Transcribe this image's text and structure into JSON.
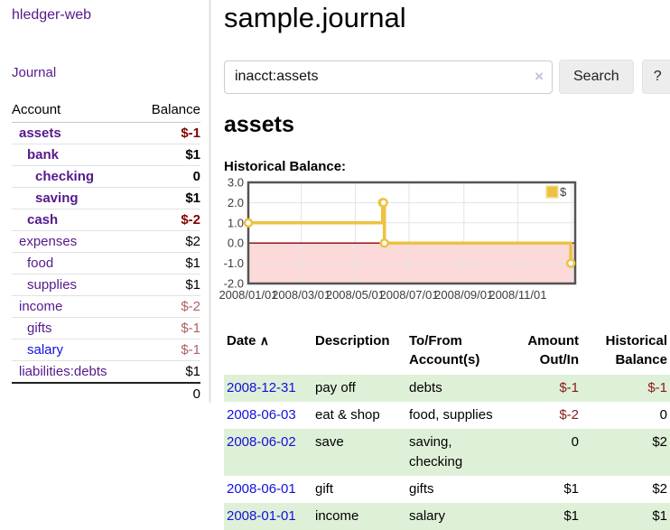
{
  "sidebar": {
    "app_title": "hledger-web",
    "journal_link": "Journal",
    "accounts_header": {
      "account": "Account",
      "balance": "Balance"
    },
    "accounts": [
      {
        "name": "assets",
        "balance": "$-1"
      },
      {
        "name": "bank",
        "balance": "$1"
      },
      {
        "name": "checking",
        "balance": "0"
      },
      {
        "name": "saving",
        "balance": "$1"
      },
      {
        "name": "cash",
        "balance": "$-2"
      },
      {
        "name": "expenses",
        "balance": "$2"
      },
      {
        "name": "food",
        "balance": "$1"
      },
      {
        "name": "supplies",
        "balance": "$1"
      },
      {
        "name": "income",
        "balance": "$-2"
      },
      {
        "name": "gifts",
        "balance": "$-1"
      },
      {
        "name": "salary",
        "balance": "$-1"
      },
      {
        "name": "liabilities:debts",
        "balance": "$1"
      }
    ],
    "total": "0"
  },
  "main": {
    "title": "sample.journal",
    "search": {
      "value": "inacct:assets",
      "clear_icon": "×",
      "button": "Search",
      "help_button": "?"
    },
    "account_heading": "assets",
    "chart_label": "Historical Balance:",
    "table": {
      "headers": [
        "Date",
        "Description",
        "To/From Account(s)",
        "Amount Out/In",
        "Historical Balance"
      ],
      "sort_icon": "∧",
      "rows": [
        {
          "date": "2008-12-31",
          "description": "pay off",
          "accounts": "debts",
          "amount": "$-1",
          "balance": "$-1"
        },
        {
          "date": "2008-06-03",
          "description": "eat & shop",
          "accounts": "food, supplies",
          "amount": "$-2",
          "balance": "0"
        },
        {
          "date": "2008-06-02",
          "description": "save",
          "accounts": "saving, checking",
          "amount": "0",
          "balance": "$2"
        },
        {
          "date": "2008-06-01",
          "description": "gift",
          "accounts": "gifts",
          "amount": "$1",
          "balance": "$2"
        },
        {
          "date": "2008-01-01",
          "description": "income",
          "accounts": "salary",
          "amount": "$1",
          "balance": "$1"
        }
      ]
    }
  },
  "chart_data": {
    "type": "line",
    "title": "Historical Balance:",
    "series": [
      {
        "name": "$",
        "color": "#edc240",
        "steps": true,
        "x": [
          "2008-01-01",
          "2008-06-01",
          "2008-06-02",
          "2008-06-03",
          "2008-12-31"
        ],
        "y": [
          1,
          2,
          2,
          0,
          -1
        ]
      }
    ],
    "ylim": [
      -2,
      3
    ],
    "xlim": [
      "2008-01-01",
      "2009-01-05"
    ],
    "yticks": [
      3.0,
      2.0,
      1.0,
      0.0,
      -1.0,
      -2.0
    ],
    "xticks": [
      {
        "date": "2008-01-01",
        "label": "2008/01/01"
      },
      {
        "date": "2008-03-01",
        "label": "2008/03/01"
      },
      {
        "date": "2008-05-01",
        "label": "2008/05/01"
      },
      {
        "date": "2008-07-01",
        "label": "2008/07/01"
      },
      {
        "date": "2008-09-01",
        "label": "2008/09/01"
      },
      {
        "date": "2008-11-01",
        "label": "2008/11/01"
      },
      {
        "date": "2009-01-01",
        "label": ""
      }
    ],
    "grid": true,
    "legend_position": "top-right",
    "negative_region_color": "#fcdada",
    "zero_line_color": "#8b0000",
    "grid_color": "#e3e3e3",
    "border_color": "#545454"
  }
}
